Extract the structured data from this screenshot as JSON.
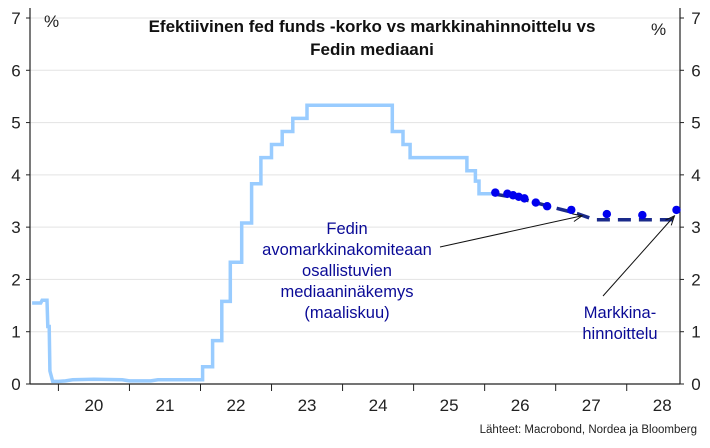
{
  "chart_data": {
    "type": "line",
    "title_lines": [
      "Efektiivinen fed funds -korko vs markkinahinnoittelu vs",
      "Fedin mediaani"
    ],
    "y_unit_left": "%",
    "y_unit_right": "%",
    "ylim": [
      0,
      7
    ],
    "yticks": [
      "0",
      "1",
      "2",
      "3",
      "4",
      "5",
      "6",
      "7"
    ],
    "xlim": [
      2019.6,
      2028.75
    ],
    "xticks": [
      {
        "label": "20",
        "value": 2020.5
      },
      {
        "label": "21",
        "value": 2021.5
      },
      {
        "label": "22",
        "value": 2022.5
      },
      {
        "label": "23",
        "value": 2023.5
      },
      {
        "label": "24",
        "value": 2024.5
      },
      {
        "label": "25",
        "value": 2025.5
      },
      {
        "label": "26",
        "value": 2026.5
      },
      {
        "label": "27",
        "value": 2027.5
      },
      {
        "label": "28",
        "value": 2028.5
      }
    ],
    "year_boundaries": [
      2020,
      2021,
      2022,
      2023,
      2024,
      2025,
      2026,
      2027,
      2028
    ],
    "series": [
      {
        "name": "Efektiivinen fed funds -korko",
        "color": "#99ccff",
        "style": "step-line",
        "points": [
          [
            2019.63,
            1.55
          ],
          [
            2019.75,
            1.55
          ],
          [
            2019.77,
            1.6
          ],
          [
            2019.8,
            1.6
          ],
          [
            2019.84,
            1.6
          ],
          [
            2019.85,
            1.1
          ],
          [
            2019.87,
            1.1
          ],
          [
            2019.88,
            0.25
          ],
          [
            2019.92,
            0.05
          ],
          [
            2020.0,
            0.05
          ],
          [
            2020.1,
            0.06
          ],
          [
            2020.2,
            0.08
          ],
          [
            2020.5,
            0.09
          ],
          [
            2020.9,
            0.08
          ],
          [
            2021.0,
            0.06
          ],
          [
            2021.3,
            0.06
          ],
          [
            2021.4,
            0.08
          ],
          [
            2021.8,
            0.08
          ],
          [
            2021.8,
            0.08
          ],
          [
            2022.0,
            0.08
          ],
          [
            2022.03,
            0.08
          ],
          [
            2022.03,
            0.33
          ],
          [
            2022.17,
            0.33
          ],
          [
            2022.17,
            0.83
          ],
          [
            2022.3,
            0.83
          ],
          [
            2022.3,
            1.58
          ],
          [
            2022.42,
            1.58
          ],
          [
            2022.42,
            2.33
          ],
          [
            2022.58,
            2.33
          ],
          [
            2022.58,
            3.08
          ],
          [
            2022.72,
            3.08
          ],
          [
            2022.72,
            3.83
          ],
          [
            2022.85,
            3.83
          ],
          [
            2022.85,
            4.33
          ],
          [
            2023.0,
            4.33
          ],
          [
            2023.0,
            4.58
          ],
          [
            2023.15,
            4.58
          ],
          [
            2023.15,
            4.83
          ],
          [
            2023.3,
            4.83
          ],
          [
            2023.3,
            5.08
          ],
          [
            2023.5,
            5.08
          ],
          [
            2023.5,
            5.33
          ],
          [
            2024.7,
            5.33
          ],
          [
            2024.7,
            4.83
          ],
          [
            2024.85,
            4.83
          ],
          [
            2024.85,
            4.58
          ],
          [
            2024.95,
            4.58
          ],
          [
            2024.95,
            4.33
          ],
          [
            2025.75,
            4.33
          ],
          [
            2025.75,
            4.08
          ],
          [
            2025.87,
            4.08
          ],
          [
            2025.87,
            3.88
          ],
          [
            2025.92,
            3.88
          ],
          [
            2025.92,
            3.64
          ],
          [
            2026.15,
            3.64
          ]
        ]
      },
      {
        "name": "Markkinahinnoittelu",
        "color": "#0000ee",
        "style": "dots",
        "points": [
          [
            2026.15,
            3.66
          ],
          [
            2026.32,
            3.64
          ],
          [
            2026.4,
            3.61
          ],
          [
            2026.48,
            3.58
          ],
          [
            2026.56,
            3.55
          ],
          [
            2026.72,
            3.47
          ],
          [
            2026.88,
            3.4
          ],
          [
            2027.22,
            3.33
          ],
          [
            2027.72,
            3.25
          ],
          [
            2028.22,
            3.23
          ],
          [
            2028.7,
            3.33
          ]
        ]
      },
      {
        "name": "Fedin avomarkkinakomiteaan osallistuvien mediaaninäkemys (maaliskuu)",
        "color": "#1a2a8a",
        "style": "dashed-line",
        "points": [
          [
            2026.15,
            3.63
          ],
          [
            2026.5,
            3.55
          ],
          [
            2026.9,
            3.4
          ],
          [
            2027.3,
            3.26
          ],
          [
            2027.55,
            3.14
          ],
          [
            2028.72,
            3.14
          ]
        ]
      }
    ],
    "annotations": [
      {
        "lines": [
          "Fedin",
          "avomarkkinakomiteaan",
          "osallistuvien",
          "mediaaninäkemys",
          "(maaliskuu)"
        ],
        "target": "Fedin mediaani",
        "arrow_to": [
          2027.4,
          3.18
        ]
      },
      {
        "lines": [
          "Markkina-",
          "hinnoittelu"
        ],
        "target": "Markkinahinnoittelu",
        "arrow_to": [
          2028.7,
          3.33
        ]
      }
    ],
    "source": "Lähteet: Macrobond, Nordea ja Bloomberg"
  },
  "colors": {
    "grid": "#e3e3e3",
    "axis": "#222222",
    "annotation_text": "#0a0a96"
  }
}
